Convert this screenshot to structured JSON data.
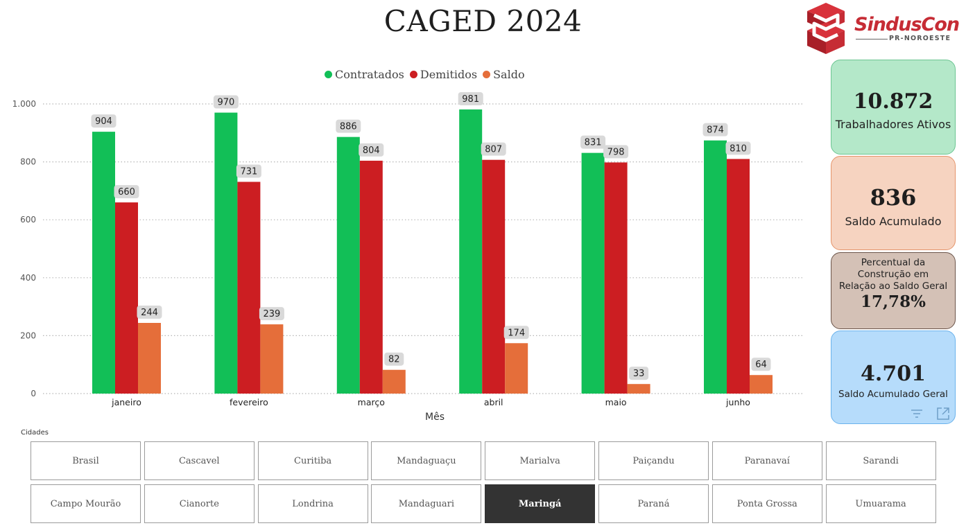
{
  "page": {
    "title": "CAGED 2024"
  },
  "logo": {
    "name": "SindusCon",
    "subtitle": "PR-NOROESTE"
  },
  "colors": {
    "contratados": "#12bf57",
    "demitidos": "#cc1e22",
    "saldo": "#e56e3a"
  },
  "chart_data": {
    "type": "bar",
    "xlabel": "Mês",
    "ylabel": "",
    "ylim": [
      0,
      1000
    ],
    "yticks": [
      0,
      200,
      400,
      600,
      800,
      1000
    ],
    "ytick_labels": [
      "0",
      "200",
      "400",
      "600",
      "800",
      "1.000"
    ],
    "grid": true,
    "legend_position": "top-center",
    "categories": [
      "janeiro",
      "fevereiro",
      "março",
      "abril",
      "maio",
      "junho"
    ],
    "series": [
      {
        "name": "Contratados",
        "values": [
          904,
          970,
          886,
          981,
          831,
          874
        ]
      },
      {
        "name": "Demitidos",
        "values": [
          660,
          731,
          804,
          807,
          798,
          810
        ]
      },
      {
        "name": "Saldo",
        "values": [
          244,
          239,
          82,
          174,
          33,
          64
        ]
      }
    ]
  },
  "kpis": [
    {
      "value": "10.872",
      "label": "Trabalhadores Ativos"
    },
    {
      "value": "836",
      "label": "Saldo Acumulado"
    },
    {
      "value": "17,78%",
      "label_lines": [
        "Percentual da",
        "Construção em",
        "Relação ao Saldo Geral"
      ]
    },
    {
      "value": "4.701",
      "label": "Saldo Acumulado Geral"
    }
  ],
  "icons": {
    "filter": "filter-icon",
    "focus": "focus-mode-icon"
  },
  "slicer": {
    "label": "Cidades",
    "selected": "Maringá",
    "rows": [
      [
        "Brasil",
        "Cascavel",
        "Curitiba",
        "Mandaguaçu",
        "Marialva",
        "Paiçandu",
        "Paranavaí",
        "Sarandi"
      ],
      [
        "Campo Mourão",
        "Cianorte",
        "Londrina",
        "Mandaguari",
        "Maringá",
        "Paraná",
        "Ponta Grossa",
        "Umuarama"
      ]
    ]
  }
}
